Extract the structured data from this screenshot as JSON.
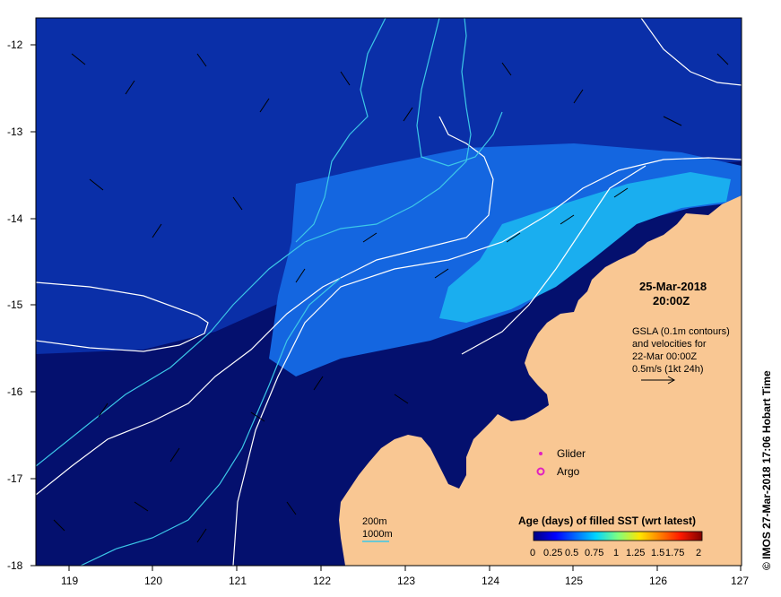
{
  "map": {
    "lon_ticks": [
      "119",
      "120",
      "121",
      "122",
      "123",
      "124",
      "125",
      "126",
      "127"
    ],
    "lat_ticks": [
      "-12",
      "-13",
      "-14",
      "-15",
      "-16",
      "-17",
      "-18"
    ],
    "lon_range": [
      118.6,
      127.0
    ],
    "lat_range": [
      -11.75,
      -17.95
    ]
  },
  "timestamp": {
    "date": "25-Mar-2018",
    "time": "20:00Z"
  },
  "gsla": {
    "line1": "GSLA (0.1m contours)",
    "line2": "and velocities for",
    "line3": "22-Mar 00:00Z",
    "line4": "0.5m/s (1kt 24h)"
  },
  "legend": {
    "glider": "Glider",
    "argo": "Argo"
  },
  "isobaths": {
    "label_200": "200m",
    "label_1000": "1000m"
  },
  "colorbar": {
    "title": "Age (days) of filled SST (wrt latest)",
    "ticks": [
      "0",
      "0.25",
      "0.5",
      "0.75",
      "1",
      "1.25",
      "1.5",
      "1.75",
      "2"
    ]
  },
  "credit": "© IMOS 27-Mar-2018 17:06 Hobart Time",
  "colors": {
    "deep_ocean": "#04106e",
    "mid_ocean": "#0a2fa8",
    "bright_band": "#1466e0",
    "cyan_band": "#1aaeef",
    "land": "#f9c793",
    "gsla_contour": "#ffffff",
    "isobath_200": "#3cc8e8",
    "glider": "#e020c0",
    "argo": "#e020c0"
  }
}
